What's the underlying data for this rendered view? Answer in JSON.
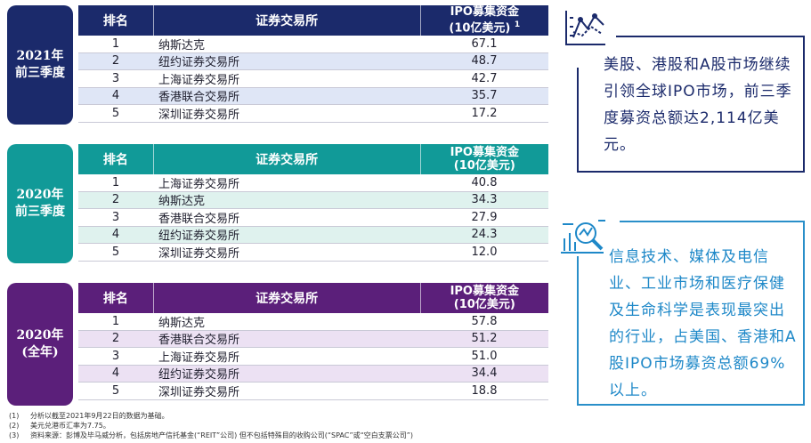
{
  "tables": [
    {
      "period_line1": "2021年",
      "period_line2": "前三季度",
      "headers": {
        "rank": "排名",
        "exchange": "证券交易所",
        "ipo_line1": "IPO募集资金",
        "ipo_line2": "(10亿美元)",
        "ipo_note": "1"
      },
      "rows": [
        {
          "rank": "1",
          "exchange": "纳斯达克",
          "value": "67.1"
        },
        {
          "rank": "2",
          "exchange": "纽约证券交易所",
          "value": "48.7"
        },
        {
          "rank": "3",
          "exchange": "上海证券交易所",
          "value": "42.7"
        },
        {
          "rank": "4",
          "exchange": "香港联合交易所",
          "value": "35.7"
        },
        {
          "rank": "5",
          "exchange": "深圳证券交易所",
          "value": "17.2"
        }
      ]
    },
    {
      "period_line1": "2020年",
      "period_line2": "前三季度",
      "headers": {
        "rank": "排名",
        "exchange": "证券交易所",
        "ipo_line1": "IPO募集资金",
        "ipo_line2": "(10亿美元)",
        "ipo_note": ""
      },
      "rows": [
        {
          "rank": "1",
          "exchange": "上海证券交易所",
          "value": "40.8"
        },
        {
          "rank": "2",
          "exchange": "纳斯达克",
          "value": "34.3"
        },
        {
          "rank": "3",
          "exchange": "香港联合交易所",
          "value": "27.9"
        },
        {
          "rank": "4",
          "exchange": "纽约证券交易所",
          "value": "24.3"
        },
        {
          "rank": "5",
          "exchange": "深圳证券交易所",
          "value": "12.0"
        }
      ]
    },
    {
      "period_line1": "2020年",
      "period_line2": "(全年)",
      "headers": {
        "rank": "排名",
        "exchange": "证券交易所",
        "ipo_line1": "IPO募集资金",
        "ipo_line2": "(10亿美元)",
        "ipo_note": ""
      },
      "rows": [
        {
          "rank": "1",
          "exchange": "纳斯达克",
          "value": "57.8"
        },
        {
          "rank": "2",
          "exchange": "香港联合交易所",
          "value": "51.2"
        },
        {
          "rank": "3",
          "exchange": "上海证券交易所",
          "value": "51.0"
        },
        {
          "rank": "4",
          "exchange": "纽约证券交易所",
          "value": "34.4"
        },
        {
          "rank": "5",
          "exchange": "深圳证券交易所",
          "value": "18.8"
        }
      ]
    }
  ],
  "callouts": {
    "first": "美股、港股和A股市场继续引领全球IPO市场，前三季度募资总额达2,114亿美元。",
    "second": "信息技术、媒体及电信业、工业市场和医疗保健及生命科学是表现最突出的行业，占美国、香港和A股IPO市场募资总额69%以上。"
  },
  "notes": [
    {
      "num": "(1)",
      "text": "分析以截至2021年9月22日的数据为基础。"
    },
    {
      "num": "(2)",
      "text": "美元兑港币汇率为7.75。"
    },
    {
      "num": "(3)",
      "text": "资料来源：彭博及毕马威分析，包括房地产信托基金(“REIT”公司) 但不包括特殊目的收购公司(“SPAC”或“空白支票公司”)"
    }
  ],
  "colors": {
    "navy": "#1b2a6b",
    "teal": "#119a98",
    "purple": "#5b1f7a",
    "blue": "#1e88c8"
  },
  "icons": {
    "first": "line-chart-icon",
    "second": "magnifier-chart-icon"
  }
}
